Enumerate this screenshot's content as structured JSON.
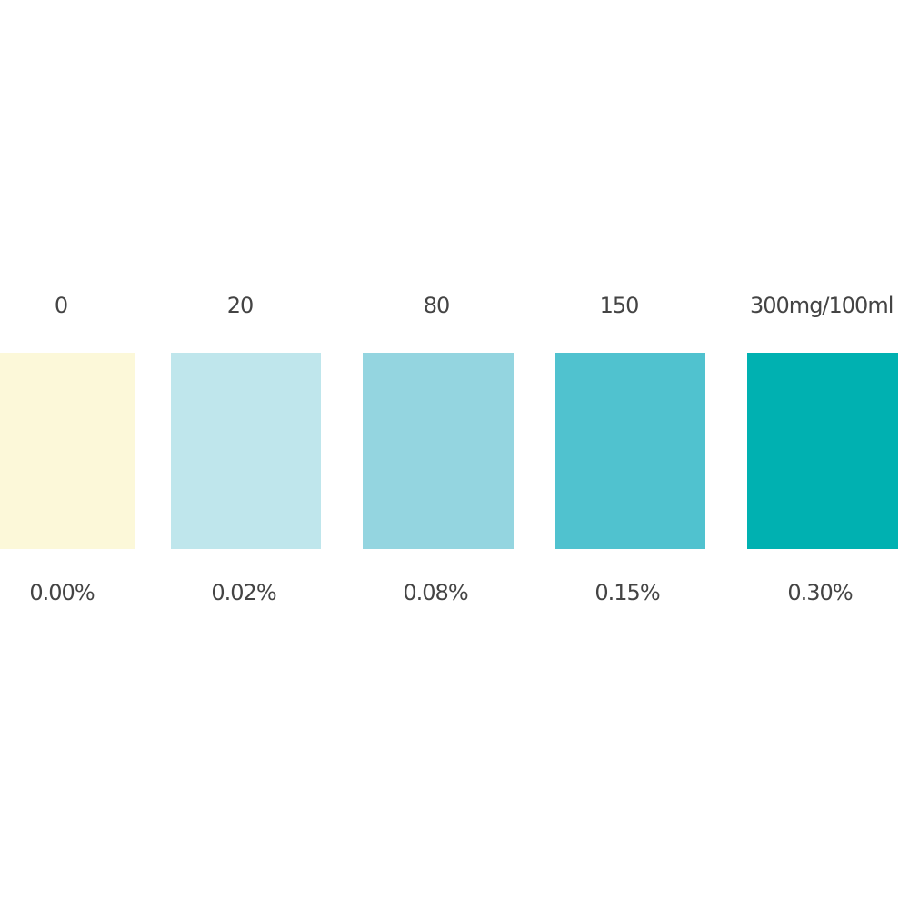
{
  "swatches": [
    {
      "level": "0",
      "percent": "0.00%",
      "color": "#fcf8d9"
    },
    {
      "level": "20",
      "percent": "0.02%",
      "color": "#bfe6ec"
    },
    {
      "level": "80",
      "percent": "0.08%",
      "color": "#94d5e0"
    },
    {
      "level": "150",
      "percent": "0.15%",
      "color": "#50c2cf"
    },
    {
      "level": "300mg/100ml",
      "percent": "0.30%",
      "color": "#00b1b1"
    }
  ]
}
